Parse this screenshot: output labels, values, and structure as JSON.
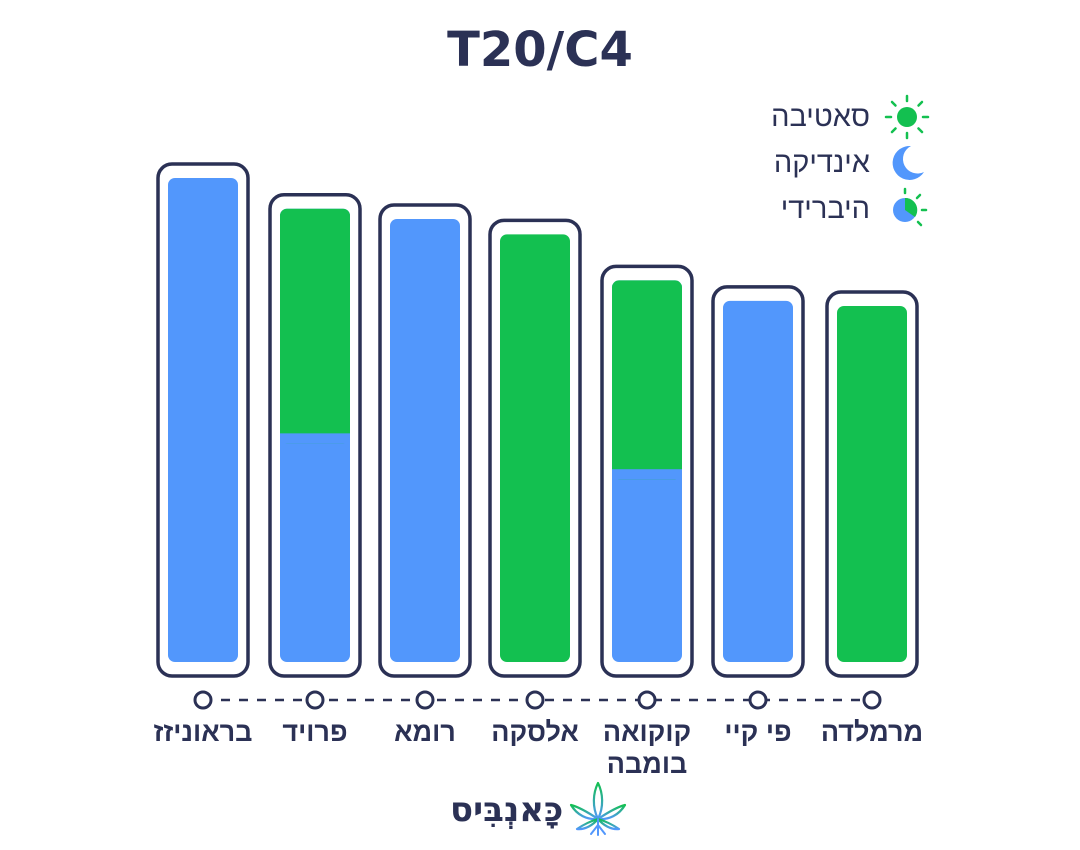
{
  "title": "T20/C4",
  "legend": {
    "sativa": "סאטיבה",
    "indica": "אינדיקה",
    "hybrid": "היברידי"
  },
  "colors": {
    "sativa": "#13c050",
    "indica": "#5297fc",
    "outline": "#2b3155",
    "text": "#2b3155"
  },
  "chart_data": {
    "type": "bar",
    "title": "T20/C4",
    "categories": [
      "בראוניזז",
      "פרויד",
      "רומא",
      "אלסקה",
      "קוקואה בומבה",
      "פי קיי",
      "מרמלדה"
    ],
    "category_lines": [
      [
        "בראוניזז"
      ],
      [
        "פרויד"
      ],
      [
        "רומא"
      ],
      [
        "אלסקה"
      ],
      [
        "קוקואה",
        "בומבה"
      ],
      [
        "פי קיי"
      ],
      [
        "מרמלדה"
      ]
    ],
    "values": [
      100,
      94,
      92,
      89,
      80,
      76,
      75
    ],
    "types": [
      "indica",
      "hybrid",
      "indica",
      "sativa",
      "hybrid",
      "indica",
      "sativa"
    ],
    "sativa_share": [
      0,
      0.5,
      0,
      1,
      0.5,
      0,
      1
    ],
    "ylim": [
      0,
      100
    ],
    "xlabel": "",
    "ylabel": "",
    "grid": false,
    "legend_position": "top-right"
  },
  "logo": {
    "text": "כָּאנְבִּיס",
    "icon": "cannabis-leaf-icon"
  }
}
